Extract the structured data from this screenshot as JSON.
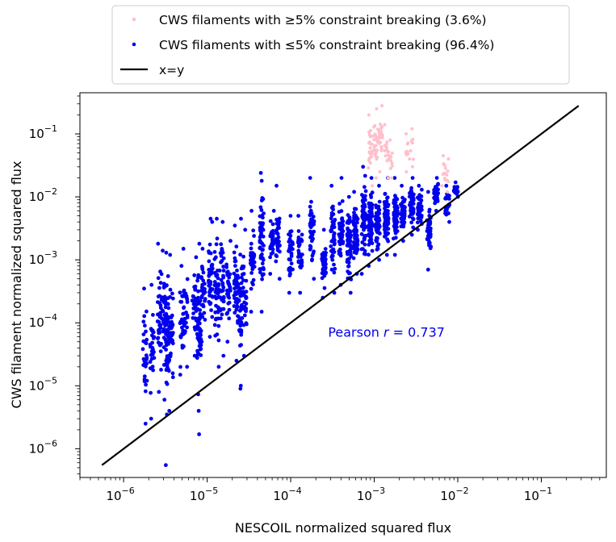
{
  "chart_data": {
    "type": "scatter",
    "xlabel": "NESCOIL normalized squared flux",
    "ylabel": "CWS filament normalized squared flux",
    "xscale": "log",
    "yscale": "log",
    "xlim": [
      3e-07,
      0.6
    ],
    "ylim": [
      3.5e-07,
      0.45
    ],
    "x_major_ticks": [
      1e-06,
      1e-05,
      0.0001,
      0.001,
      0.01,
      0.1
    ],
    "y_major_ticks": [
      1e-06,
      1e-05,
      0.0001,
      0.001,
      0.01,
      0.1
    ],
    "tick_labels": {
      "x": [
        {
          "base": "10",
          "exp": "−6"
        },
        {
          "base": "10",
          "exp": "−5"
        },
        {
          "base": "10",
          "exp": "−4"
        },
        {
          "base": "10",
          "exp": "−3"
        },
        {
          "base": "10",
          "exp": "−2"
        },
        {
          "base": "10",
          "exp": "−1"
        }
      ],
      "y": [
        {
          "base": "10",
          "exp": "−6"
        },
        {
          "base": "10",
          "exp": "−5"
        },
        {
          "base": "10",
          "exp": "−4"
        },
        {
          "base": "10",
          "exp": "−3"
        },
        {
          "base": "10",
          "exp": "−2"
        },
        {
          "base": "10",
          "exp": "−1"
        }
      ]
    },
    "series": [
      {
        "name": "CWS filaments with ≥5% constraint breaking (3.6%)",
        "color": "#ffc0cb",
        "marker": "point",
        "clusters": [
          {
            "x": 0.0009,
            "y_range": [
              0.015,
              0.2
            ],
            "n": 24
          },
          {
            "x": 0.00105,
            "y_range": [
              0.02,
              0.25
            ],
            "n": 26
          },
          {
            "x": 0.0012,
            "y_range": [
              0.025,
              0.28
            ],
            "n": 26
          },
          {
            "x": 0.0014,
            "y_range": [
              0.02,
              0.14
            ],
            "n": 16
          },
          {
            "x": 0.0016,
            "y_range": [
              0.02,
              0.08
            ],
            "n": 10
          },
          {
            "x": 0.0025,
            "y_range": [
              0.025,
              0.1
            ],
            "n": 10
          },
          {
            "x": 0.0028,
            "y_range": [
              0.03,
              0.12
            ],
            "n": 8
          },
          {
            "x": 0.0068,
            "y_range": [
              0.015,
              0.045
            ],
            "n": 8
          },
          {
            "x": 0.0074,
            "y_range": [
              0.012,
              0.04
            ],
            "n": 8
          }
        ]
      },
      {
        "name": "CWS filaments with ≤5% constraint breaking (96.4%)",
        "color": "#0000ee",
        "marker": "dot",
        "clusters": [
          {
            "x": 1.8e-06,
            "y_range": [
              2.5e-06,
              0.00035
            ],
            "n": 30
          },
          {
            "x": 2.2e-06,
            "y_range": [
              3e-06,
              0.0004
            ],
            "n": 30
          },
          {
            "x": 2.7e-06,
            "y_range": [
              8e-06,
              0.0018
            ],
            "n": 40
          },
          {
            "x": 3.1e-06,
            "y_range": [
              6e-06,
              0.0014
            ],
            "n": 40
          },
          {
            "x": 3.4e-06,
            "y_range": [
              3.5e-06,
              0.0013
            ],
            "n": 45
          },
          {
            "x": 3.7e-06,
            "y_range": [
              4e-06,
              0.0012
            ],
            "n": 35
          },
          {
            "x": 5e-06,
            "y_range": [
              1.5e-05,
              0.0008
            ],
            "n": 30
          },
          {
            "x": 5.5e-06,
            "y_range": [
              2e-05,
              0.0015
            ],
            "n": 30
          },
          {
            "x": 7e-06,
            "y_range": [
              3e-05,
              0.0011
            ],
            "n": 25
          },
          {
            "x": 8e-06,
            "y_range": [
              4e-06,
              0.0018
            ],
            "n": 55
          },
          {
            "x": 9e-06,
            "y_range": [
              5e-05,
              0.0015
            ],
            "n": 30
          },
          {
            "x": 1.1e-05,
            "y_range": [
              6e-05,
              0.004
            ],
            "n": 45
          },
          {
            "x": 1.3e-05,
            "y_range": [
              2e-05,
              0.0045
            ],
            "n": 45
          },
          {
            "x": 1.5e-05,
            "y_range": [
              3e-05,
              0.004
            ],
            "n": 35
          },
          {
            "x": 1.8e-05,
            "y_range": [
              5e-05,
              0.002
            ],
            "n": 30
          },
          {
            "x": 2.2e-05,
            "y_range": [
              2.5e-05,
              0.0035
            ],
            "n": 45
          },
          {
            "x": 2.5e-05,
            "y_range": [
              1e-05,
              0.0045
            ],
            "n": 40
          },
          {
            "x": 2.8e-05,
            "y_range": [
              3e-05,
              0.003
            ],
            "n": 30
          },
          {
            "x": 3.5e-05,
            "y_range": [
              0.00015,
              0.006
            ],
            "n": 30
          },
          {
            "x": 4.5e-05,
            "y_range": [
              0.00015,
              0.024
            ],
            "n": 55
          },
          {
            "x": 6e-05,
            "y_range": [
              0.0006,
              0.006
            ],
            "n": 30
          },
          {
            "x": 7e-05,
            "y_range": [
              0.0005,
              0.015
            ],
            "n": 35
          },
          {
            "x": 0.0001,
            "y_range": [
              0.0003,
              0.005
            ],
            "n": 35
          },
          {
            "x": 0.00013,
            "y_range": [
              0.0003,
              0.005
            ],
            "n": 35
          },
          {
            "x": 0.00018,
            "y_range": [
              0.0005,
              0.02
            ],
            "n": 45
          },
          {
            "x": 0.00025,
            "y_range": [
              0.00025,
              0.003
            ],
            "n": 45
          },
          {
            "x": 0.00032,
            "y_range": [
              0.0003,
              0.015
            ],
            "n": 45
          },
          {
            "x": 0.0004,
            "y_range": [
              0.0004,
              0.02
            ],
            "n": 45
          },
          {
            "x": 0.0005,
            "y_range": [
              0.0003,
              0.01
            ],
            "n": 60
          },
          {
            "x": 0.0006,
            "y_range": [
              0.0006,
              0.012
            ],
            "n": 60
          },
          {
            "x": 0.00075,
            "y_range": [
              0.0006,
              0.03
            ],
            "n": 60
          },
          {
            "x": 0.0009,
            "y_range": [
              0.0008,
              0.02
            ],
            "n": 65
          },
          {
            "x": 0.0011,
            "y_range": [
              0.001,
              0.015
            ],
            "n": 65
          },
          {
            "x": 0.0014,
            "y_range": [
              0.0012,
              0.02
            ],
            "n": 65
          },
          {
            "x": 0.0018,
            "y_range": [
              0.0012,
              0.02
            ],
            "n": 60
          },
          {
            "x": 0.0022,
            "y_range": [
              0.002,
              0.015
            ],
            "n": 55
          },
          {
            "x": 0.0028,
            "y_range": [
              0.0025,
              0.02
            ],
            "n": 55
          },
          {
            "x": 0.0035,
            "y_range": [
              0.003,
              0.015
            ],
            "n": 50
          },
          {
            "x": 0.0045,
            "y_range": [
              0.0007,
              0.012
            ],
            "n": 40
          },
          {
            "x": 0.0055,
            "y_range": [
              0.006,
              0.02
            ],
            "n": 30
          },
          {
            "x": 0.0075,
            "y_range": [
              0.004,
              0.015
            ],
            "n": 30
          },
          {
            "x": 0.0095,
            "y_range": [
              0.01,
              0.017
            ],
            "n": 25
          }
        ],
        "outliers": [
          {
            "x": 3.2e-06,
            "y": 5.5e-07
          },
          {
            "x": 8e-06,
            "y": 1.7e-06
          },
          {
            "x": 2.5e-05,
            "y": 9e-06
          },
          {
            "x": 1.1e-05,
            "y": 0.0045
          },
          {
            "x": 4.5e-05,
            "y": 0.018
          }
        ]
      }
    ],
    "reference_line": {
      "name": "x=y",
      "color": "#000000",
      "from": 5.5e-07,
      "to": 0.28
    },
    "legend": {
      "placement": "top-center-outside",
      "entries": [
        {
          "label_main": "CWS filaments with ",
          "label_math": "≥",
          "label_rest": "5% constraint breaking (3.6%)"
        },
        {
          "label_main": "CWS filaments with ",
          "label_math": "≤",
          "label_rest": "5% constraint breaking (96.4%)"
        },
        {
          "label_main": "x=y",
          "label_math": "",
          "label_rest": ""
        }
      ]
    },
    "annotation": {
      "text_pre": "Pearson ",
      "text_var": "r",
      "text_eq": " = 0.737",
      "x": 0.00028,
      "y": 6e-05,
      "color": "#0000ee"
    }
  }
}
